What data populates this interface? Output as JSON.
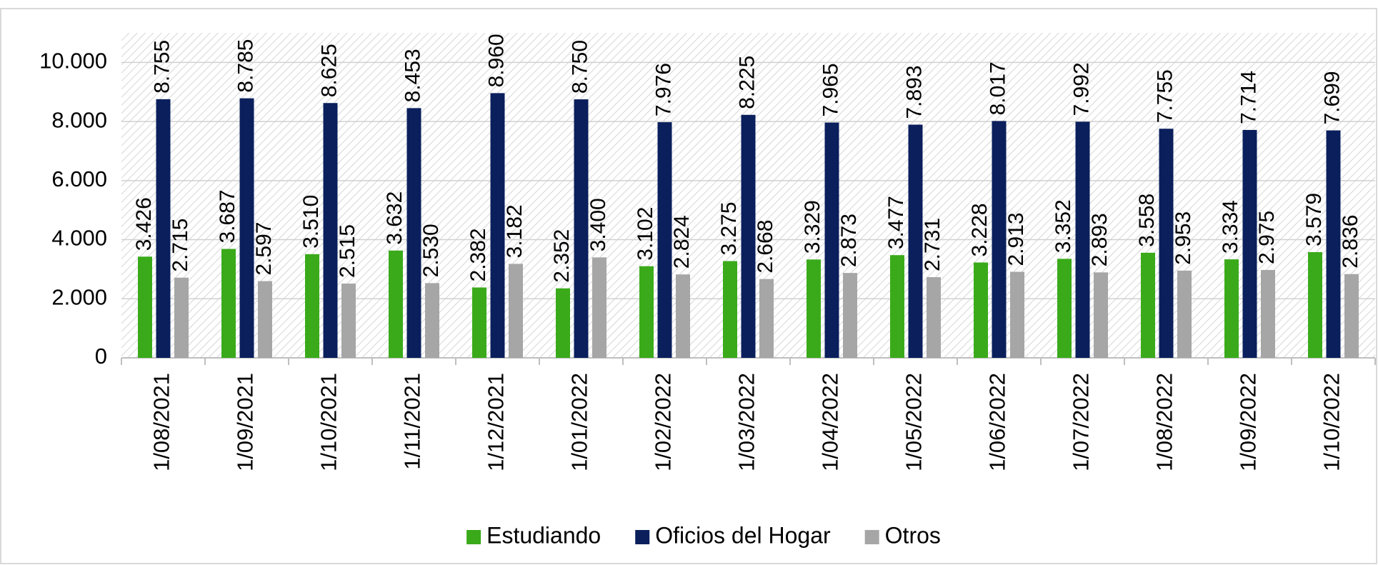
{
  "chart_data": {
    "type": "bar",
    "categories": [
      "1/08/2021",
      "1/09/2021",
      "1/10/2021",
      "1/11/2021",
      "1/12/2021",
      "1/01/2022",
      "1/02/2022",
      "1/03/2022",
      "1/04/2022",
      "1/05/2022",
      "1/06/2022",
      "1/07/2022",
      "1/08/2022",
      "1/09/2022",
      "1/10/2022"
    ],
    "series": [
      {
        "name": "Estudiando",
        "color": "#3aaa1a",
        "values": [
          3426,
          3687,
          3510,
          3632,
          2382,
          2352,
          3102,
          3275,
          3329,
          3477,
          3228,
          3352,
          3558,
          3334,
          3579
        ],
        "value_labels": [
          "3.426",
          "3.687",
          "3.510",
          "3.632",
          "2.382",
          "2.352",
          "3.102",
          "3.275",
          "3.329",
          "3.477",
          "3.228",
          "3.352",
          "3.558",
          "3.334",
          "3.579"
        ]
      },
      {
        "name": "Oficios del Hogar",
        "color": "#0a1f5c",
        "values": [
          8755,
          8785,
          8625,
          8453,
          8960,
          8750,
          7976,
          8225,
          7965,
          7893,
          8017,
          7992,
          7755,
          7714,
          7699
        ],
        "value_labels": [
          "8.755",
          "8.785",
          "8.625",
          "8.453",
          "8.960",
          "8.750",
          "7.976",
          "8.225",
          "7.965",
          "7.893",
          "8.017",
          "7.992",
          "7.755",
          "7.714",
          "7.699"
        ]
      },
      {
        "name": "Otros",
        "color": "#a6a6a6",
        "values": [
          2715,
          2597,
          2515,
          2530,
          3182,
          3400,
          2824,
          2668,
          2873,
          2731,
          2913,
          2893,
          2953,
          2975,
          2836
        ],
        "value_labels": [
          "2.715",
          "2.597",
          "2.515",
          "2.530",
          "3.182",
          "3.400",
          "2.824",
          "2.668",
          "2.873",
          "2.731",
          "2.913",
          "2.893",
          "2.953",
          "2.975",
          "2.836"
        ]
      }
    ],
    "ylim": [
      0,
      11000
    ],
    "yticks": [
      0,
      {
        "value": 2000,
        "label": "2.000"
      },
      {
        "value": 4000,
        "label": "4.000"
      },
      {
        "value": 6000,
        "label": "6.000"
      },
      {
        "value": 8000,
        "label": "8.000"
      },
      {
        "value": 10000,
        "label": "10.000"
      }
    ],
    "grid": true,
    "legend": "bottom"
  }
}
